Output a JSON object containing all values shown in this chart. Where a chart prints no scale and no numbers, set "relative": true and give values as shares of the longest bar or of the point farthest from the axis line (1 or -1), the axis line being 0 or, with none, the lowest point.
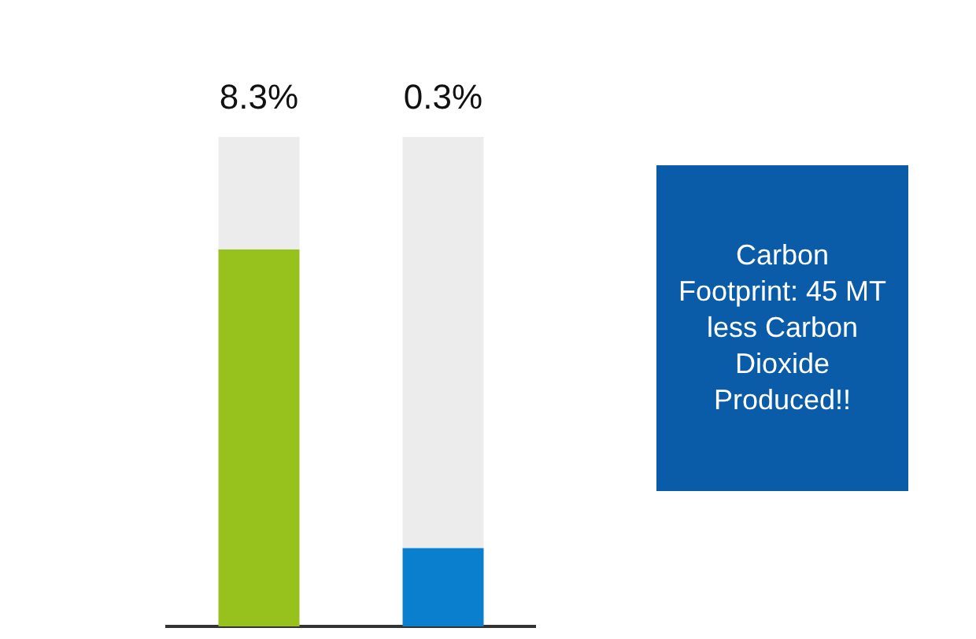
{
  "chart_data": {
    "type": "bar",
    "categories": [
      null,
      null
    ],
    "relative": true,
    "stacked": true,
    "series": [
      {
        "colors": [
          "#97c21e",
          "#0a7fce"
        ],
        "values": [
          0.77,
          0.16
        ]
      },
      {
        "color": "#ececec",
        "values": [
          0.23,
          0.84
        ]
      }
    ],
    "legend": false,
    "annotations": [
      {
        "text": "8.3%",
        "y": 1
      },
      {
        "text": "0.3%",
        "y": 1
      },
      "Carbon Footprint: 45 MT less Carbon Dioxide Produced!!"
    ]
  }
}
